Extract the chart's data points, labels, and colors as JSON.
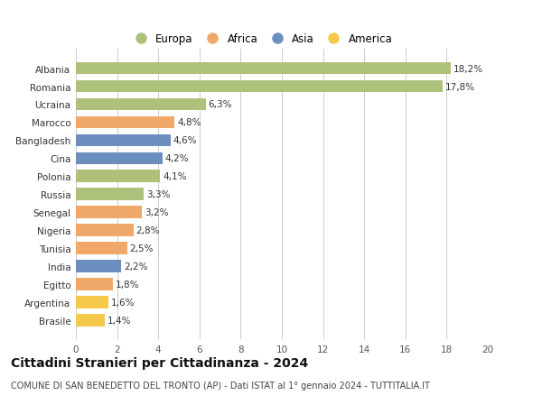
{
  "countries": [
    "Albania",
    "Romania",
    "Ucraina",
    "Marocco",
    "Bangladesh",
    "Cina",
    "Polonia",
    "Russia",
    "Senegal",
    "Nigeria",
    "Tunisia",
    "India",
    "Egitto",
    "Argentina",
    "Brasile"
  ],
  "values": [
    18.2,
    17.8,
    6.3,
    4.8,
    4.6,
    4.2,
    4.1,
    3.3,
    3.2,
    2.8,
    2.5,
    2.2,
    1.8,
    1.6,
    1.4
  ],
  "labels": [
    "18,2%",
    "17,8%",
    "6,3%",
    "4,8%",
    "4,6%",
    "4,2%",
    "4,1%",
    "3,3%",
    "3,2%",
    "2,8%",
    "2,5%",
    "2,2%",
    "1,8%",
    "1,6%",
    "1,4%"
  ],
  "colors": [
    "#aec17a",
    "#aec17a",
    "#aec17a",
    "#f0a86a",
    "#6b8ebf",
    "#6b8ebf",
    "#aec17a",
    "#aec17a",
    "#f0a86a",
    "#f0a86a",
    "#f0a86a",
    "#6b8ebf",
    "#f0a86a",
    "#f5c84a",
    "#f5c84a"
  ],
  "legend_labels": [
    "Europa",
    "Africa",
    "Asia",
    "America"
  ],
  "legend_colors": [
    "#aec17a",
    "#f0a86a",
    "#6b8ebf",
    "#f5c84a"
  ],
  "title": "Cittadini Stranieri per Cittadinanza - 2024",
  "subtitle": "COMUNE DI SAN BENEDETTO DEL TRONTO (AP) - Dati ISTAT al 1° gennaio 2024 - TUTTITALIA.IT",
  "xlim": [
    0,
    20
  ],
  "xticks": [
    0,
    2,
    4,
    6,
    8,
    10,
    12,
    14,
    16,
    18,
    20
  ],
  "background_color": "#ffffff",
  "grid_color": "#cccccc",
  "bar_height": 0.68,
  "label_fontsize": 7.5,
  "tick_fontsize": 7.5,
  "title_fontsize": 10,
  "subtitle_fontsize": 7
}
